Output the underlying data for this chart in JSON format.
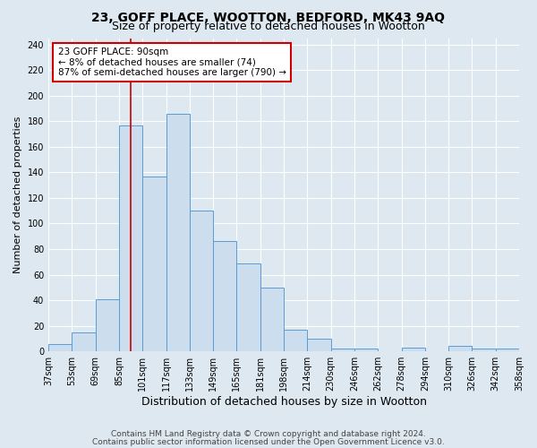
{
  "title": "23, GOFF PLACE, WOOTTON, BEDFORD, MK43 9AQ",
  "subtitle": "Size of property relative to detached houses in Wootton",
  "xlabel": "Distribution of detached houses by size in Wootton",
  "ylabel": "Number of detached properties",
  "footnote1": "Contains HM Land Registry data © Crown copyright and database right 2024.",
  "footnote2": "Contains public sector information licensed under the Open Government Licence v3.0.",
  "bar_labels": [
    "37sqm",
    "53sqm",
    "69sqm",
    "85sqm",
    "101sqm",
    "117sqm",
    "133sqm",
    "149sqm",
    "165sqm",
    "181sqm",
    "198sqm",
    "214sqm",
    "230sqm",
    "246sqm",
    "262sqm",
    "278sqm",
    "294sqm",
    "310sqm",
    "326sqm",
    "342sqm",
    "358sqm"
  ],
  "bar_values": [
    6,
    15,
    41,
    177,
    137,
    186,
    110,
    86,
    69,
    50,
    17,
    10,
    2,
    2,
    0,
    3,
    0,
    4,
    2,
    2
  ],
  "bar_color": "#ccdded",
  "bar_edge_color": "#5b9bd5",
  "vline_x": 3.5,
  "vline_color": "#cc0000",
  "annotation_line1": "23 GOFF PLACE: 90sqm",
  "annotation_line2": "← 8% of detached houses are smaller (74)",
  "annotation_line3": "87% of semi-detached houses are larger (790) →",
  "annotation_box_color": "#ffffff",
  "annotation_box_edge": "#cc0000",
  "ylim": [
    0,
    245
  ],
  "yticks": [
    0,
    20,
    40,
    60,
    80,
    100,
    120,
    140,
    160,
    180,
    200,
    220,
    240
  ],
  "bg_color": "#dde8f0",
  "plot_bg": "#dde8f0",
  "grid_color": "#ffffff",
  "title_fontsize": 10,
  "subtitle_fontsize": 9,
  "xlabel_fontsize": 9,
  "ylabel_fontsize": 8,
  "tick_fontsize": 7,
  "annot_fontsize": 7.5,
  "footnote_fontsize": 6.5
}
